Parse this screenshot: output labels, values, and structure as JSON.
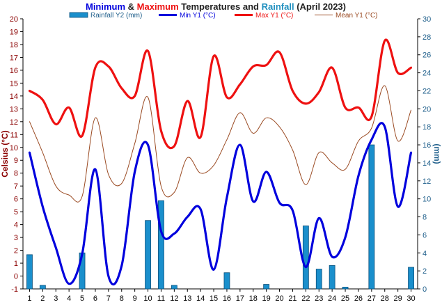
{
  "colors": {
    "min": "#0000dd",
    "max": "#ee1111",
    "mean": "#9a4a22",
    "rain_fill": "#1a8fcc",
    "rain_stroke": "#0a4f7a",
    "left_axis": "#8b0000",
    "right_axis": "#1f5f8b",
    "title_default": "#222222",
    "rain_title": "#1f8fbf"
  },
  "title_parts": [
    {
      "text": "Minimum",
      "color_key": "min"
    },
    {
      "text": " & ",
      "color_key": "title_default"
    },
    {
      "text": "Maximum",
      "color_key": "max"
    },
    {
      "text": " Temperatures and ",
      "color_key": "title_default"
    },
    {
      "text": "Rainfall",
      "color_key": "rain_title"
    },
    {
      "text": " (April 2023)",
      "color_key": "title_default"
    }
  ],
  "chart_data": {
    "type": "line",
    "title": "Minimum & Maximum Temperatures and Rainfall (April 2023)",
    "x": [
      1,
      2,
      3,
      4,
      5,
      6,
      7,
      8,
      9,
      10,
      11,
      12,
      13,
      14,
      15,
      16,
      17,
      18,
      19,
      20,
      21,
      22,
      23,
      24,
      25,
      26,
      27,
      28,
      29,
      30
    ],
    "ylabel": "Celsius (°C)",
    "y2label": "(mm)",
    "ylim": [
      -1,
      20
    ],
    "y2lim": [
      0,
      30
    ],
    "legend_position": "top",
    "grid": false,
    "series": [
      {
        "name": "Rainfall Y2 (mm)",
        "type": "bar",
        "axis": "y2",
        "color_key": "rain_fill",
        "values": [
          3.8,
          0.4,
          0,
          0,
          4.0,
          0,
          0,
          0,
          0,
          7.6,
          9.8,
          0.4,
          0,
          0,
          0,
          1.8,
          0,
          0,
          0.5,
          0,
          0,
          7.0,
          2.2,
          2.6,
          0.2,
          0,
          16.0,
          0,
          0,
          2.4
        ]
      },
      {
        "name": "Min Y1 (°C)",
        "type": "line",
        "axis": "y1",
        "color_key": "min",
        "values": [
          9.6,
          5.4,
          2.2,
          -0.6,
          1.7,
          8.3,
          0.0,
          0.8,
          8.1,
          10.2,
          3.5,
          3.3,
          4.6,
          5.2,
          0.5,
          6.1,
          10.2,
          5.8,
          8.1,
          5.7,
          5.1,
          0.7,
          4.5,
          1.5,
          3.0,
          7.8,
          10.6,
          11.6,
          5.4,
          9.6
        ]
      },
      {
        "name": "Max Y1 (°C)",
        "type": "line",
        "axis": "y1",
        "color_key": "max",
        "values": [
          14.4,
          13.7,
          11.8,
          13.1,
          10.9,
          16.2,
          16.3,
          14.6,
          14.0,
          17.5,
          11.3,
          10.1,
          13.6,
          10.8,
          17.1,
          13.9,
          14.9,
          16.3,
          16.4,
          17.4,
          14.4,
          13.4,
          14.3,
          16.2,
          13.1,
          13.1,
          12.4,
          18.3,
          15.8,
          16.2
        ]
      },
      {
        "name": "Mean Y1 (°C)",
        "type": "line",
        "axis": "y1",
        "color_key": "mean",
        "values": [
          12.0,
          9.6,
          7.0,
          6.3,
          6.2,
          12.3,
          7.9,
          7.2,
          10.3,
          13.9,
          7.0,
          6.5,
          9.2,
          8.0,
          8.6,
          10.6,
          12.7,
          11.1,
          12.3,
          11.6,
          9.8,
          7.1,
          9.6,
          8.8,
          8.3,
          10.5,
          11.5,
          14.8,
          10.5,
          12.9
        ]
      }
    ]
  }
}
